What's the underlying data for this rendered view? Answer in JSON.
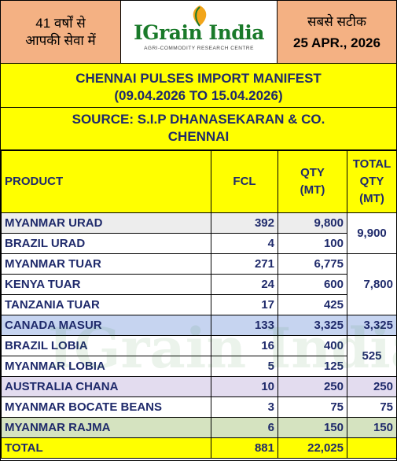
{
  "header": {
    "left_line1": "41 वर्षों से",
    "left_line2": "आपकी सेवा में",
    "logo_text": "IGrain India",
    "logo_tagline": "AGRI-COMMODITY RESEARCH CENTRE",
    "right_line1": "सबसे सटीक",
    "date": "25 APR., 2026"
  },
  "title": {
    "line1": "CHENNAI PULSES IMPORT MANIFEST",
    "line2": "(09.04.2026 TO 15.04.2026)"
  },
  "source": {
    "line1": "SOURCE: S.I.P DHANASEKARAN & CO.",
    "line2": "CHENNAI"
  },
  "table": {
    "headers": {
      "product": "PRODUCT",
      "fcl": "FCL",
      "qty_line1": "QTY",
      "qty_line2": "(MT)",
      "total_line1": "TOTAL",
      "total_line2": "QTY",
      "total_line3": "(MT)"
    },
    "rows": [
      {
        "product": "MYANMAR URAD",
        "fcl": "392",
        "qty": "9,800"
      },
      {
        "product": "BRAZIL URAD",
        "fcl": "4",
        "qty": "100"
      },
      {
        "product": "MYANMAR TUAR",
        "fcl": "271",
        "qty": "6,775"
      },
      {
        "product": "KENYA TUAR",
        "fcl": "24",
        "qty": "600"
      },
      {
        "product": "TANZANIA TUAR",
        "fcl": "17",
        "qty": "425"
      },
      {
        "product": "CANADA MASUR",
        "fcl": "133",
        "qty": "3,325"
      },
      {
        "product": "BRAZIL LOBIA",
        "fcl": "16",
        "qty": "400"
      },
      {
        "product": "MYANMAR LOBIA",
        "fcl": "5",
        "qty": "125"
      },
      {
        "product": "AUSTRALIA CHANA",
        "fcl": "10",
        "qty": "250"
      },
      {
        "product": "MYANMAR BOCATE BEANS",
        "fcl": "3",
        "qty": "75"
      },
      {
        "product": "MYANMAR RAJMA",
        "fcl": "6",
        "qty": "150"
      }
    ],
    "group_totals": {
      "urad": "9,900",
      "tuar": "7,800",
      "masur": "3,325",
      "lobia": "525",
      "chana": "250",
      "bocate": "75",
      "rajma": "150"
    },
    "total": {
      "label": "TOTAL",
      "fcl": "881",
      "qty": "22,025"
    }
  },
  "watermark": "IGrain India"
}
